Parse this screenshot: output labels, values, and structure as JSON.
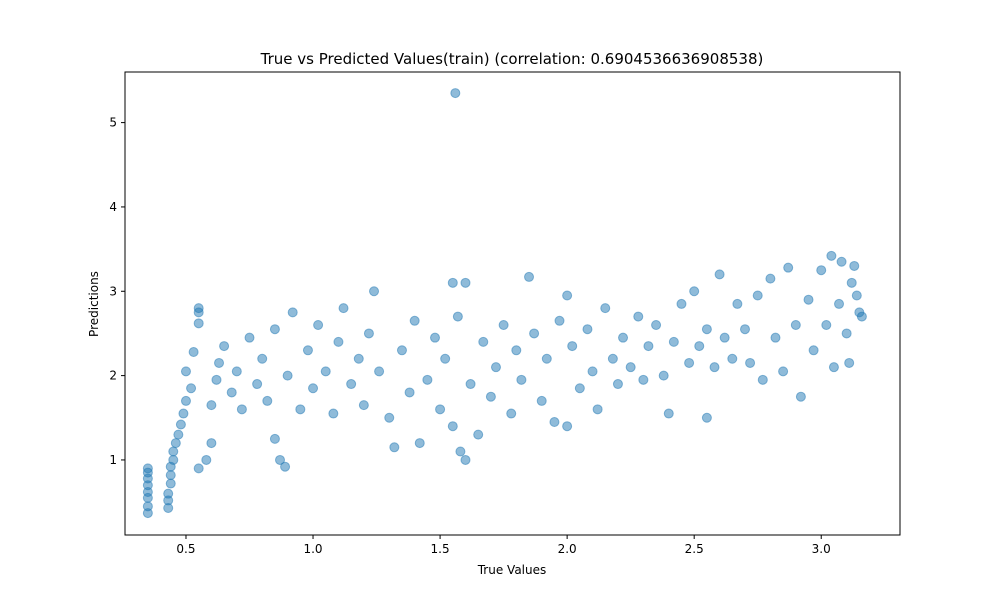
{
  "chart_data": {
    "type": "scatter",
    "title": "True vs Predicted Values(train) (correlation: 0.6904536636908538)",
    "xlabel": "True Values",
    "ylabel": "Predictions",
    "xlim": [
      0.26,
      3.31
    ],
    "ylim": [
      0.11,
      5.6
    ],
    "x_ticks": [
      0.5,
      1.0,
      1.5,
      2.0,
      2.5,
      3.0
    ],
    "x_tick_labels": [
      "0.5",
      "1.0",
      "1.5",
      "2.0",
      "2.5",
      "3.0"
    ],
    "y_ticks": [
      1,
      2,
      3,
      4,
      5
    ],
    "y_tick_labels": [
      "1",
      "2",
      "3",
      "4",
      "5"
    ],
    "grid": false,
    "legend": "none",
    "marker_color": "#1f77b4",
    "marker_alpha": 0.5,
    "series": [
      {
        "points": [
          [
            0.35,
            0.37
          ],
          [
            0.35,
            0.45
          ],
          [
            0.35,
            0.55
          ],
          [
            0.35,
            0.62
          ],
          [
            0.35,
            0.7
          ],
          [
            0.35,
            0.78
          ],
          [
            0.35,
            0.85
          ],
          [
            0.35,
            0.9
          ],
          [
            0.43,
            0.43
          ],
          [
            0.43,
            0.52
          ],
          [
            0.43,
            0.6
          ],
          [
            0.44,
            0.72
          ],
          [
            0.44,
            0.82
          ],
          [
            0.44,
            0.92
          ],
          [
            0.45,
            1.0
          ],
          [
            0.45,
            1.1
          ],
          [
            0.46,
            1.2
          ],
          [
            0.47,
            1.3
          ],
          [
            0.48,
            1.42
          ],
          [
            0.49,
            1.55
          ],
          [
            0.5,
            1.7
          ],
          [
            0.5,
            2.05
          ],
          [
            0.52,
            1.85
          ],
          [
            0.53,
            2.28
          ],
          [
            0.55,
            2.62
          ],
          [
            0.55,
            2.75
          ],
          [
            0.55,
            2.8
          ],
          [
            0.55,
            0.9
          ],
          [
            0.58,
            1.0
          ],
          [
            0.6,
            1.2
          ],
          [
            0.6,
            1.65
          ],
          [
            0.62,
            1.95
          ],
          [
            0.63,
            2.15
          ],
          [
            0.65,
            2.35
          ],
          [
            0.68,
            1.8
          ],
          [
            0.7,
            2.05
          ],
          [
            0.72,
            1.6
          ],
          [
            0.75,
            2.45
          ],
          [
            0.78,
            1.9
          ],
          [
            0.8,
            2.2
          ],
          [
            0.82,
            1.7
          ],
          [
            0.85,
            2.55
          ],
          [
            0.85,
            1.25
          ],
          [
            0.87,
            1.0
          ],
          [
            0.89,
            0.92
          ],
          [
            0.9,
            2.0
          ],
          [
            0.92,
            2.75
          ],
          [
            0.95,
            1.6
          ],
          [
            0.98,
            2.3
          ],
          [
            1.0,
            1.85
          ],
          [
            1.02,
            2.6
          ],
          [
            1.05,
            2.05
          ],
          [
            1.08,
            1.55
          ],
          [
            1.1,
            2.4
          ],
          [
            1.12,
            2.8
          ],
          [
            1.15,
            1.9
          ],
          [
            1.18,
            2.2
          ],
          [
            1.2,
            1.65
          ],
          [
            1.22,
            2.5
          ],
          [
            1.24,
            3.0
          ],
          [
            1.26,
            2.05
          ],
          [
            1.3,
            1.5
          ],
          [
            1.32,
            1.15
          ],
          [
            1.35,
            2.3
          ],
          [
            1.38,
            1.8
          ],
          [
            1.4,
            2.65
          ],
          [
            1.42,
            1.2
          ],
          [
            1.45,
            1.95
          ],
          [
            1.48,
            2.45
          ],
          [
            1.5,
            1.6
          ],
          [
            1.52,
            2.2
          ],
          [
            1.55,
            3.1
          ],
          [
            1.55,
            1.4
          ],
          [
            1.56,
            5.35
          ],
          [
            1.57,
            2.7
          ],
          [
            1.58,
            1.1
          ],
          [
            1.6,
            3.1
          ],
          [
            1.6,
            1.0
          ],
          [
            1.62,
            1.9
          ],
          [
            1.65,
            1.3
          ],
          [
            1.67,
            2.4
          ],
          [
            1.7,
            1.75
          ],
          [
            1.72,
            2.1
          ],
          [
            1.75,
            2.6
          ],
          [
            1.78,
            1.55
          ],
          [
            1.8,
            2.3
          ],
          [
            1.82,
            1.95
          ],
          [
            1.85,
            3.17
          ],
          [
            1.87,
            2.5
          ],
          [
            1.9,
            1.7
          ],
          [
            1.92,
            2.2
          ],
          [
            1.95,
            1.45
          ],
          [
            1.97,
            2.65
          ],
          [
            2.0,
            1.4
          ],
          [
            2.0,
            2.95
          ],
          [
            2.02,
            2.35
          ],
          [
            2.05,
            1.85
          ],
          [
            2.08,
            2.55
          ],
          [
            2.1,
            2.05
          ],
          [
            2.12,
            1.6
          ],
          [
            2.15,
            2.8
          ],
          [
            2.18,
            2.2
          ],
          [
            2.2,
            1.9
          ],
          [
            2.22,
            2.45
          ],
          [
            2.25,
            2.1
          ],
          [
            2.28,
            2.7
          ],
          [
            2.3,
            1.95
          ],
          [
            2.32,
            2.35
          ],
          [
            2.35,
            2.6
          ],
          [
            2.38,
            2.0
          ],
          [
            2.4,
            1.55
          ],
          [
            2.42,
            2.4
          ],
          [
            2.45,
            2.85
          ],
          [
            2.48,
            2.15
          ],
          [
            2.5,
            3.0
          ],
          [
            2.52,
            2.35
          ],
          [
            2.55,
            1.5
          ],
          [
            2.55,
            2.55
          ],
          [
            2.58,
            2.1
          ],
          [
            2.6,
            3.2
          ],
          [
            2.62,
            2.45
          ],
          [
            2.65,
            2.2
          ],
          [
            2.67,
            2.85
          ],
          [
            2.7,
            2.55
          ],
          [
            2.72,
            2.15
          ],
          [
            2.75,
            2.95
          ],
          [
            2.77,
            1.95
          ],
          [
            2.8,
            3.15
          ],
          [
            2.82,
            2.45
          ],
          [
            2.85,
            2.05
          ],
          [
            2.87,
            3.28
          ],
          [
            2.9,
            2.6
          ],
          [
            2.92,
            1.75
          ],
          [
            2.95,
            2.9
          ],
          [
            2.97,
            2.3
          ],
          [
            3.0,
            3.25
          ],
          [
            3.02,
            2.6
          ],
          [
            3.04,
            3.42
          ],
          [
            3.05,
            2.1
          ],
          [
            3.07,
            2.85
          ],
          [
            3.08,
            3.35
          ],
          [
            3.1,
            2.5
          ],
          [
            3.11,
            2.15
          ],
          [
            3.12,
            3.1
          ],
          [
            3.13,
            3.3
          ],
          [
            3.14,
            2.95
          ],
          [
            3.15,
            2.75
          ],
          [
            3.16,
            2.7
          ]
        ]
      }
    ]
  }
}
